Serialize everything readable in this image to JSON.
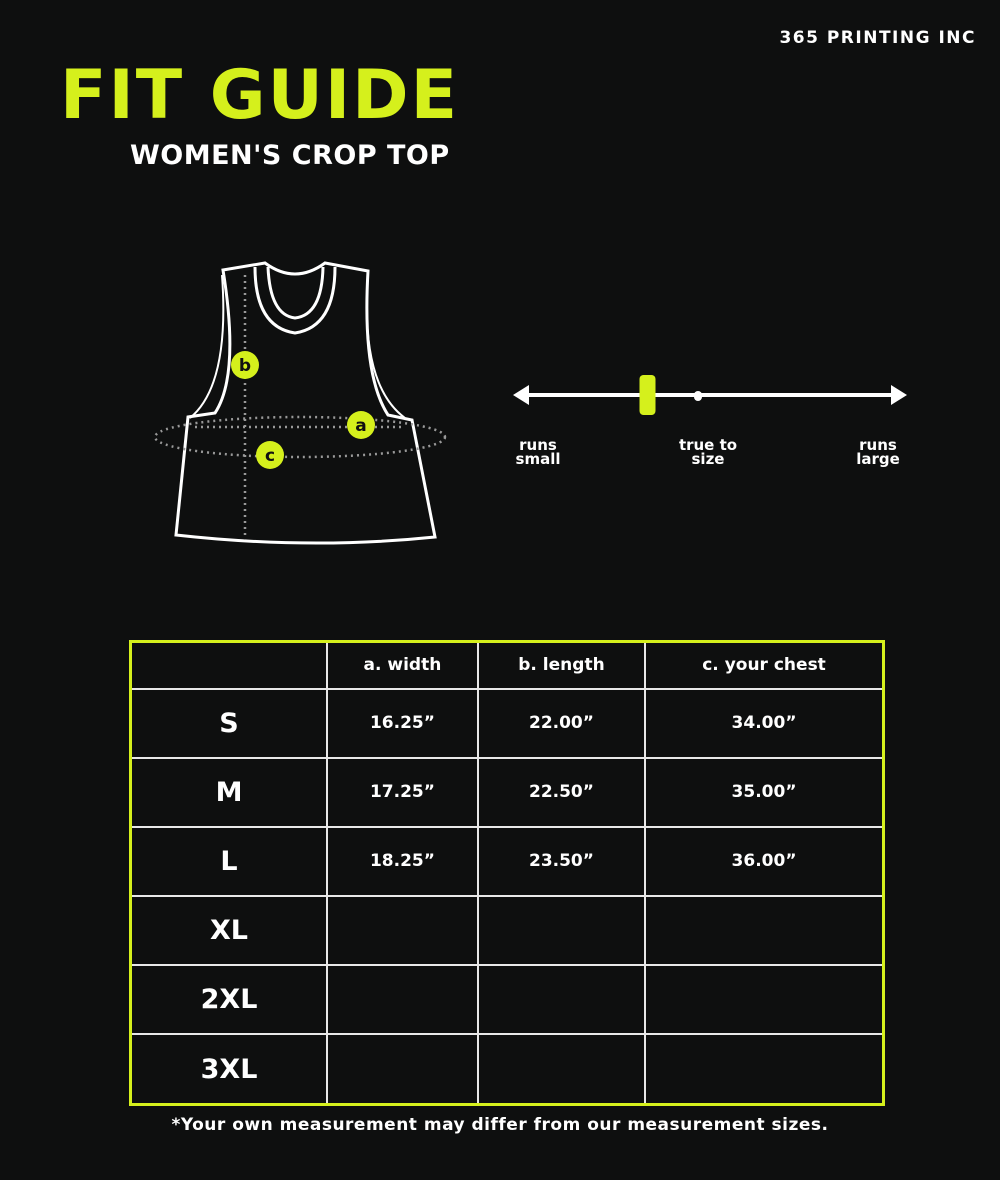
{
  "brand": "365 PRINTING INC",
  "title": "FIT GUIDE",
  "subtitle": "WOMEN'S CROP TOP",
  "accent_color": "#d5f01c",
  "diagram": {
    "labels": {
      "a": "a",
      "b": "b",
      "c": "c"
    }
  },
  "fit_scale": {
    "left_label_1": "runs",
    "left_label_2": "small",
    "middle_label_1": "true to",
    "middle_label_2": "size",
    "right_label_1": "runs",
    "right_label_2": "large",
    "indicator_fraction": 0.34
  },
  "table": {
    "headers": [
      "",
      "a. width",
      "b. length",
      "c. your chest"
    ],
    "rows": [
      {
        "size": "S",
        "width": "16.25”",
        "length": "22.00”",
        "chest": "34.00”"
      },
      {
        "size": "M",
        "width": "17.25”",
        "length": "22.50”",
        "chest": "35.00”"
      },
      {
        "size": "L",
        "width": "18.25”",
        "length": "23.50”",
        "chest": "36.00”"
      },
      {
        "size": "XL",
        "width": "",
        "length": "",
        "chest": ""
      },
      {
        "size": "2XL",
        "width": "",
        "length": "",
        "chest": ""
      },
      {
        "size": "3XL",
        "width": "",
        "length": "",
        "chest": ""
      }
    ]
  },
  "footnote": "*Your own measurement may differ from our measurement sizes."
}
